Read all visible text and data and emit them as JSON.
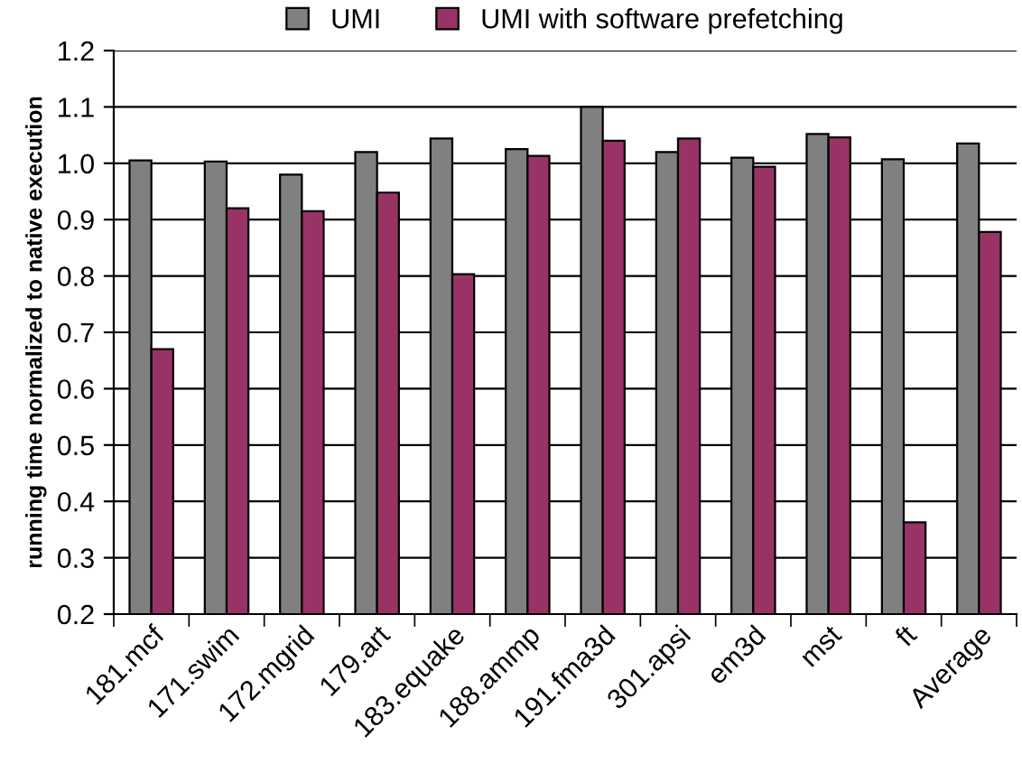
{
  "chart_data": {
    "type": "bar",
    "ylabel": "running time normalized to native execution",
    "categories": [
      "181.mcf",
      "171.swim",
      "172.mgrid",
      "179.art",
      "183.equake",
      "188.ammp",
      "191.fma3d",
      "301.apsi",
      "em3d",
      "mst",
      "ft",
      "Average"
    ],
    "series": [
      {
        "name": "UMI",
        "color": "#808080",
        "values": [
          1.005,
          1.003,
          0.98,
          1.02,
          1.044,
          1.025,
          1.1,
          1.02,
          1.01,
          1.052,
          1.007,
          1.035
        ]
      },
      {
        "name": "UMI with software prefetching",
        "color": "#993366",
        "values": [
          0.67,
          0.92,
          0.915,
          0.948,
          0.803,
          1.013,
          1.04,
          1.044,
          0.994,
          1.046,
          0.363,
          0.878
        ]
      }
    ],
    "ylim": [
      0.2,
      1.2
    ],
    "yticks": [
      {
        "value": 0.2,
        "label": "0.2"
      },
      {
        "value": 0.3,
        "label": "0.3"
      },
      {
        "value": 0.4,
        "label": "0.4"
      },
      {
        "value": 0.5,
        "label": "0.5"
      },
      {
        "value": 0.6,
        "label": "0.6"
      },
      {
        "value": 0.7,
        "label": "0.7"
      },
      {
        "value": 0.8,
        "label": "0.8"
      },
      {
        "value": 0.9,
        "label": "0.9"
      },
      {
        "value": 1.0,
        "label": "1.0"
      },
      {
        "value": 1.1,
        "label": "1.1"
      },
      {
        "value": 1.2,
        "label": "1.2"
      }
    ],
    "grid": "y",
    "legend": "top"
  }
}
